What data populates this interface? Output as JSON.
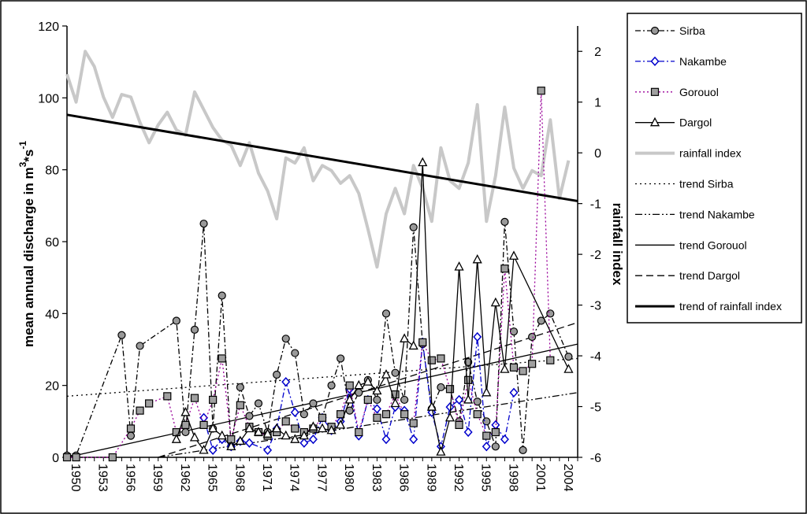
{
  "chart_data": {
    "type": "line",
    "title": "",
    "ylabel": "mean annual discharge in m",
    "ylabel_unit_sup": "3",
    "ylabel_unit_mid": "*s",
    "ylabel_unit_sup2": "-1",
    "y2label": "rainfall index",
    "ylim": [
      0,
      120
    ],
    "y2lim": [
      -6,
      2.5
    ],
    "xlim": [
      1950,
      2006
    ],
    "x_tick_labels": [
      "1950",
      "1953",
      "1956",
      "1959",
      "1962",
      "1965",
      "1968",
      "1971",
      "1974",
      "1977",
      "1980",
      "1983",
      "1986",
      "1989",
      "1992",
      "1995",
      "1998",
      "2001",
      "2004"
    ],
    "y_tick_labels": [
      "0",
      "20",
      "40",
      "60",
      "80",
      "100",
      "120"
    ],
    "y2_tick_labels": [
      "-6",
      "-5",
      "-4",
      "-3",
      "-2",
      "-1",
      "0",
      "1",
      "2"
    ],
    "grid": false,
    "legend_position": "right",
    "series": [
      {
        "name": "Sirba",
        "axis": "left",
        "style": "dashdot-circle",
        "color": "#000000",
        "points": [
          [
            1950,
            0.5
          ],
          [
            1951,
            0.5
          ],
          [
            1956,
            34
          ],
          [
            1957,
            6
          ],
          [
            1958,
            31
          ],
          [
            1962,
            38
          ],
          [
            1963,
            7
          ],
          [
            1964,
            35.5
          ],
          [
            1965,
            65
          ],
          [
            1966,
            8
          ],
          [
            1967,
            45
          ],
          [
            1968,
            3
          ],
          [
            1969,
            19.5
          ],
          [
            1970,
            11.5
          ],
          [
            1971,
            15
          ],
          [
            1972,
            7
          ],
          [
            1973,
            23
          ],
          [
            1974,
            33
          ],
          [
            1975,
            29
          ],
          [
            1976,
            12
          ],
          [
            1977,
            15
          ],
          [
            1978,
            11
          ],
          [
            1979,
            20
          ],
          [
            1980,
            27.5
          ],
          [
            1981,
            13
          ],
          [
            1982,
            18
          ],
          [
            1983,
            21.5
          ],
          [
            1984,
            16
          ],
          [
            1985,
            40
          ],
          [
            1986,
            23.5
          ],
          [
            1987,
            16
          ],
          [
            1988,
            64
          ],
          [
            1989,
            31.5
          ],
          [
            1990,
            13.5
          ],
          [
            1991,
            19.5
          ],
          [
            1992,
            19
          ],
          [
            1993,
            10
          ],
          [
            1994,
            26.5
          ],
          [
            1995,
            15.5
          ],
          [
            1996,
            10
          ],
          [
            1997,
            3
          ],
          [
            1998,
            65.5
          ],
          [
            1999,
            35
          ],
          [
            2000,
            2
          ],
          [
            2001,
            33.5
          ],
          [
            2002,
            38
          ],
          [
            2003,
            40
          ],
          [
            2005,
            28
          ]
        ]
      },
      {
        "name": "Nakambe",
        "axis": "left",
        "style": "dashdot-diamond",
        "color": "#0000cc",
        "points": [
          [
            1965,
            11
          ],
          [
            1966,
            2
          ],
          [
            1967,
            5
          ],
          [
            1968,
            3
          ],
          [
            1969,
            4.5
          ],
          [
            1970,
            4
          ],
          [
            1972,
            2
          ],
          [
            1973,
            8
          ],
          [
            1974,
            21
          ],
          [
            1975,
            12.5
          ],
          [
            1976,
            4
          ],
          [
            1977,
            5
          ],
          [
            1978,
            11
          ],
          [
            1979,
            7.5
          ],
          [
            1980,
            10
          ],
          [
            1981,
            19
          ],
          [
            1982,
            6
          ],
          [
            1983,
            16
          ],
          [
            1984,
            13.5
          ],
          [
            1985,
            5
          ],
          [
            1986,
            14
          ],
          [
            1987,
            13
          ],
          [
            1988,
            5
          ],
          [
            1989,
            32
          ],
          [
            1990,
            12.5
          ],
          [
            1991,
            3
          ],
          [
            1992,
            14
          ],
          [
            1993,
            16
          ],
          [
            1994,
            7
          ],
          [
            1995,
            33.5
          ],
          [
            1996,
            3
          ],
          [
            1997,
            9
          ],
          [
            1998,
            5
          ],
          [
            1999,
            18
          ]
        ]
      },
      {
        "name": "Gorouol",
        "axis": "left",
        "style": "dot-square",
        "color": "#990099",
        "points": [
          [
            1950,
            0
          ],
          [
            1951,
            0
          ],
          [
            1955,
            0
          ],
          [
            1957,
            8
          ],
          [
            1958,
            13
          ],
          [
            1959,
            15
          ],
          [
            1961,
            17
          ],
          [
            1962,
            7
          ],
          [
            1963,
            9
          ],
          [
            1964,
            16.5
          ],
          [
            1965,
            9
          ],
          [
            1966,
            16
          ],
          [
            1967,
            27.5
          ],
          [
            1968,
            5
          ],
          [
            1969,
            14.5
          ],
          [
            1970,
            8.5
          ],
          [
            1971,
            7
          ],
          [
            1972,
            6
          ],
          [
            1973,
            7
          ],
          [
            1974,
            10
          ],
          [
            1975,
            8
          ],
          [
            1976,
            7
          ],
          [
            1977,
            8
          ],
          [
            1978,
            11
          ],
          [
            1979,
            8.5
          ],
          [
            1980,
            12
          ],
          [
            1981,
            20
          ],
          [
            1982,
            7
          ],
          [
            1983,
            16
          ],
          [
            1984,
            11
          ],
          [
            1985,
            12
          ],
          [
            1986,
            17.5
          ],
          [
            1987,
            12
          ],
          [
            1988,
            9.5
          ],
          [
            1989,
            32
          ],
          [
            1990,
            27
          ],
          [
            1991,
            27.5
          ],
          [
            1992,
            19
          ],
          [
            1993,
            9
          ],
          [
            1994,
            21.5
          ],
          [
            1995,
            12
          ],
          [
            1996,
            6
          ],
          [
            1997,
            7
          ],
          [
            1998,
            52.5
          ],
          [
            1999,
            25
          ],
          [
            2000,
            24
          ],
          [
            2001,
            26
          ],
          [
            2002,
            102
          ],
          [
            2003,
            27
          ]
        ]
      },
      {
        "name": "Dargol",
        "axis": "left",
        "style": "solid-triangle",
        "color": "#000000",
        "points": [
          [
            1962,
            5
          ],
          [
            1963,
            12.5
          ],
          [
            1964,
            5.5
          ],
          [
            1965,
            2
          ],
          [
            1966,
            8
          ],
          [
            1967,
            6
          ],
          [
            1968,
            3
          ],
          [
            1969,
            4.5
          ],
          [
            1970,
            8
          ],
          [
            1971,
            7
          ],
          [
            1972,
            6.5
          ],
          [
            1973,
            8
          ],
          [
            1974,
            6
          ],
          [
            1975,
            5
          ],
          [
            1976,
            6
          ],
          [
            1977,
            8.5
          ],
          [
            1978,
            8
          ],
          [
            1979,
            7.5
          ],
          [
            1980,
            9
          ],
          [
            1981,
            16
          ],
          [
            1982,
            20
          ],
          [
            1983,
            21
          ],
          [
            1984,
            18.5
          ],
          [
            1985,
            23
          ],
          [
            1986,
            15
          ],
          [
            1987,
            33
          ],
          [
            1988,
            31
          ],
          [
            1989,
            82
          ],
          [
            1990,
            14
          ],
          [
            1991,
            1.5
          ],
          [
            1992,
            11
          ],
          [
            1993,
            53
          ],
          [
            1994,
            16
          ],
          [
            1995,
            55
          ],
          [
            1996,
            18
          ],
          [
            1997,
            43
          ],
          [
            1998,
            24.5
          ],
          [
            1999,
            56
          ],
          [
            2005,
            24.5
          ]
        ]
      },
      {
        "name": "rainfall index",
        "axis": "right",
        "style": "thick-gray",
        "color": "#c8c8c8",
        "points": [
          [
            1950,
            1.55
          ],
          [
            1951,
            1.0
          ],
          [
            1952,
            2.0
          ],
          [
            1953,
            1.7
          ],
          [
            1954,
            1.1
          ],
          [
            1955,
            0.7
          ],
          [
            1956,
            1.15
          ],
          [
            1957,
            1.1
          ],
          [
            1958,
            0.6
          ],
          [
            1959,
            0.2
          ],
          [
            1960,
            0.55
          ],
          [
            1961,
            0.8
          ],
          [
            1962,
            0.45
          ],
          [
            1963,
            0.35
          ],
          [
            1964,
            1.2
          ],
          [
            1965,
            0.85
          ],
          [
            1966,
            0.5
          ],
          [
            1967,
            0.25
          ],
          [
            1968,
            0.15
          ],
          [
            1969,
            -0.25
          ],
          [
            1970,
            0.2
          ],
          [
            1971,
            -0.4
          ],
          [
            1972,
            -0.75
          ],
          [
            1973,
            -1.3
          ],
          [
            1974,
            -0.1
          ],
          [
            1975,
            -0.2
          ],
          [
            1976,
            0.1
          ],
          [
            1977,
            -0.55
          ],
          [
            1978,
            -0.25
          ],
          [
            1979,
            -0.35
          ],
          [
            1980,
            -0.6
          ],
          [
            1981,
            -0.45
          ],
          [
            1982,
            -0.8
          ],
          [
            1983,
            -1.5
          ],
          [
            1984,
            -2.25
          ],
          [
            1985,
            -1.2
          ],
          [
            1986,
            -0.7
          ],
          [
            1987,
            -1.2
          ],
          [
            1988,
            -0.25
          ],
          [
            1989,
            -0.7
          ],
          [
            1990,
            -1.35
          ],
          [
            1991,
            0.1
          ],
          [
            1992,
            -0.55
          ],
          [
            1993,
            -0.7
          ],
          [
            1994,
            -0.2
          ],
          [
            1995,
            0.95
          ],
          [
            1996,
            -1.35
          ],
          [
            1997,
            -0.45
          ],
          [
            1998,
            0.9
          ],
          [
            1999,
            -0.3
          ],
          [
            2000,
            -0.7
          ],
          [
            2001,
            -0.35
          ],
          [
            2002,
            -0.45
          ],
          [
            2003,
            0.65
          ],
          [
            2004,
            -0.9
          ],
          [
            2005,
            -0.15
          ]
        ]
      }
    ],
    "trends": [
      {
        "name": "trend Sirba",
        "axis": "left",
        "style": "dotted",
        "x": [
          1950,
          2006
        ],
        "y": [
          17,
          27.5
        ]
      },
      {
        "name": "trend Nakambe",
        "axis": "left",
        "style": "dashdotdot",
        "x": [
          1960,
          2006
        ],
        "y": [
          0,
          18
        ]
      },
      {
        "name": "trend Gorouol",
        "axis": "left",
        "style": "solid",
        "x": [
          1950,
          2006
        ],
        "y": [
          0,
          31.5
        ]
      },
      {
        "name": "trend Dargol",
        "axis": "left",
        "style": "dashed",
        "x": [
          1960,
          2006
        ],
        "y": [
          0,
          37.5
        ]
      },
      {
        "name": "trend of rainfall index",
        "axis": "right",
        "style": "thick",
        "x": [
          1950,
          2006
        ],
        "y": [
          0.75,
          -0.95
        ]
      }
    ]
  },
  "legend": {
    "items": [
      {
        "label": "Sirba",
        "key": "sirba"
      },
      {
        "label": "Nakambe",
        "key": "nakambe"
      },
      {
        "label": "Gorouol",
        "key": "gorouol"
      },
      {
        "label": "Dargol",
        "key": "dargol"
      },
      {
        "label": "rainfall index",
        "key": "rainfall"
      },
      {
        "label": "trend Sirba",
        "key": "t_sirba"
      },
      {
        "label": "trend Nakambe",
        "key": "t_nakambe"
      },
      {
        "label": "trend Gorouol",
        "key": "t_gorouol"
      },
      {
        "label": "trend Dargol",
        "key": "t_dargol"
      },
      {
        "label": "trend of rainfall index",
        "key": "t_rain"
      }
    ]
  },
  "colors": {
    "sirba_marker": "#999999",
    "nakambe": "#0000cc",
    "gorouol": "#990099",
    "gorouol_marker": "#a0a0a0",
    "rainfall": "#c8c8c8",
    "axis": "#000000"
  }
}
